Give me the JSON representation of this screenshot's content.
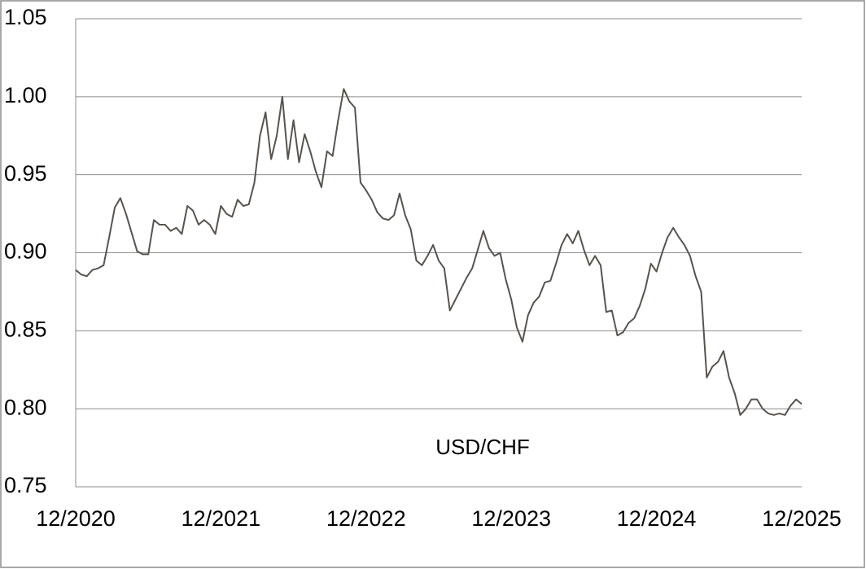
{
  "chart_data": {
    "type": "line",
    "categories": [
      "12/2020",
      null,
      null,
      null,
      null,
      null,
      null,
      null,
      null,
      null,
      null,
      null,
      null,
      null,
      null,
      null,
      null,
      null,
      null,
      null,
      null,
      null,
      null,
      null,
      null,
      null,
      "12/2021",
      null,
      null,
      null,
      null,
      null,
      null,
      null,
      null,
      null,
      null,
      null,
      null,
      null,
      null,
      null,
      null,
      null,
      null,
      null,
      null,
      null,
      null,
      null,
      null,
      null,
      "12/2022",
      null,
      null,
      null,
      null,
      null,
      null,
      null,
      null,
      null,
      null,
      null,
      null,
      null,
      null,
      null,
      null,
      null,
      null,
      null,
      null,
      null,
      null,
      null,
      null,
      null,
      "12/2023",
      null,
      null,
      null,
      null,
      null,
      null,
      null,
      null,
      null,
      null,
      null,
      null,
      null,
      null,
      null,
      null,
      null,
      null,
      null,
      null,
      null,
      null,
      null,
      null,
      null,
      "12/2024",
      null,
      null,
      null,
      null,
      null,
      null,
      null,
      null,
      null,
      null,
      null,
      null,
      null,
      null,
      null,
      null,
      null,
      null,
      null,
      null,
      null,
      null,
      null,
      null,
      null,
      "12/2025"
    ],
    "series": [
      {
        "name": "USD/CHF",
        "color": "#58534d",
        "values": [
          0.889,
          0.886,
          0.885,
          0.889,
          0.89,
          0.892,
          0.91,
          0.929,
          0.935,
          0.925,
          0.913,
          0.901,
          0.899,
          0.899,
          0.921,
          0.918,
          0.918,
          0.914,
          0.916,
          0.912,
          0.93,
          0.927,
          0.918,
          0.921,
          0.918,
          0.912,
          0.93,
          0.925,
          0.923,
          0.934,
          0.93,
          0.931,
          0.945,
          0.975,
          0.99,
          0.96,
          0.975,
          1.0,
          0.96,
          0.985,
          0.958,
          0.976,
          0.965,
          0.952,
          0.942,
          0.965,
          0.962,
          0.985,
          1.005,
          0.997,
          0.993,
          0.945,
          0.94,
          0.934,
          0.926,
          0.922,
          0.921,
          0.924,
          0.938,
          0.924,
          0.915,
          0.895,
          0.892,
          0.898,
          0.905,
          0.895,
          0.89,
          0.863,
          0.87,
          0.877,
          0.884,
          0.89,
          0.902,
          0.914,
          0.903,
          0.898,
          0.9,
          0.883,
          0.87,
          0.852,
          0.843,
          0.86,
          0.868,
          0.872,
          0.881,
          0.882,
          0.893,
          0.905,
          0.912,
          0.906,
          0.914,
          0.902,
          0.892,
          0.898,
          0.892,
          0.862,
          0.863,
          0.847,
          0.849,
          0.855,
          0.858,
          0.866,
          0.877,
          0.893,
          0.888,
          0.9,
          0.91,
          0.916,
          0.91,
          0.905,
          0.898,
          0.885,
          0.875,
          0.82,
          0.827,
          0.83,
          0.837,
          0.82,
          0.81,
          0.796,
          0.8,
          0.806,
          0.806,
          0.8,
          0.797,
          0.796,
          0.797,
          0.796,
          0.802,
          0.806,
          0.803
        ]
      }
    ],
    "ylim": [
      0.75,
      1.05
    ],
    "yticks": [
      0.75,
      {
        "value": 0.8,
        "label": "0.80"
      },
      0.85,
      {
        "value": 0.9,
        "label": "0.90"
      },
      0.95,
      {
        "value": 1,
        "label": "1.00"
      },
      1.05
    ],
    "grid": true
  }
}
